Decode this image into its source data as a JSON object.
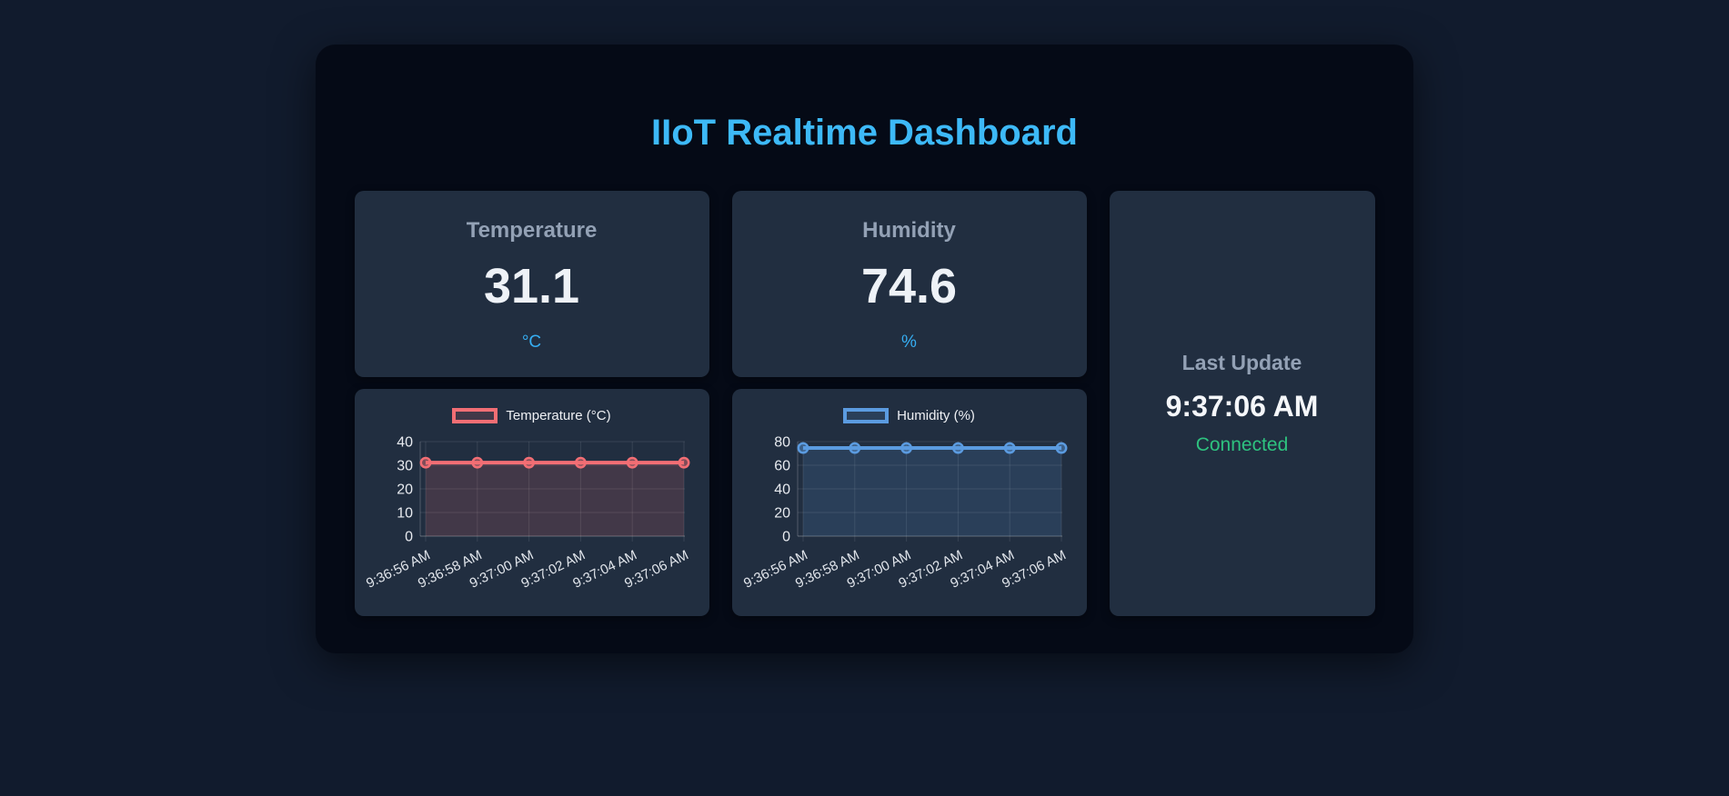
{
  "page": {
    "title": "IIoT Realtime Dashboard"
  },
  "colors": {
    "page_background": "#111b2d",
    "panel_background": "#050a16",
    "card_background": "#212e40",
    "title_accent": "#3db9f7",
    "unit_accent": "#36aef2",
    "connected_green": "#2ec27f",
    "temperature_red": "#f26e74",
    "humidity_blue": "#5b9be0"
  },
  "cards": {
    "temperature": {
      "label": "Temperature",
      "value": "31.1",
      "unit": "°C"
    },
    "humidity": {
      "label": "Humidity",
      "value": "74.6",
      "unit": "%"
    },
    "status": {
      "label": "Last Update",
      "time": "9:37:06 AM",
      "connection": "Connected"
    }
  },
  "chart_data": [
    {
      "type": "line",
      "legend": "Temperature (°C)",
      "legend_position": "top",
      "x": [
        "9:36:56 AM",
        "9:36:58 AM",
        "9:37:00 AM",
        "9:37:02 AM",
        "9:37:04 AM",
        "9:37:06 AM"
      ],
      "values": [
        31.1,
        31.1,
        31.1,
        31.1,
        31.1,
        31.1
      ],
      "ylim": [
        0,
        40
      ],
      "yticks": [
        0,
        10,
        20,
        30,
        40
      ],
      "grid": true,
      "area_fill": true,
      "line_color": "#f26e74",
      "fill_color": "rgba(242,110,116,0.16)"
    },
    {
      "type": "line",
      "legend": "Humidity (%)",
      "legend_position": "top",
      "x": [
        "9:36:56 AM",
        "9:36:58 AM",
        "9:37:00 AM",
        "9:37:02 AM",
        "9:37:04 AM",
        "9:37:06 AM"
      ],
      "values": [
        74.6,
        74.6,
        74.6,
        74.6,
        74.6,
        74.6
      ],
      "ylim": [
        0,
        80
      ],
      "yticks": [
        0,
        20,
        40,
        60,
        80
      ],
      "grid": true,
      "area_fill": true,
      "line_color": "#5b9be0",
      "fill_color": "rgba(91,155,224,0.16)"
    }
  ]
}
